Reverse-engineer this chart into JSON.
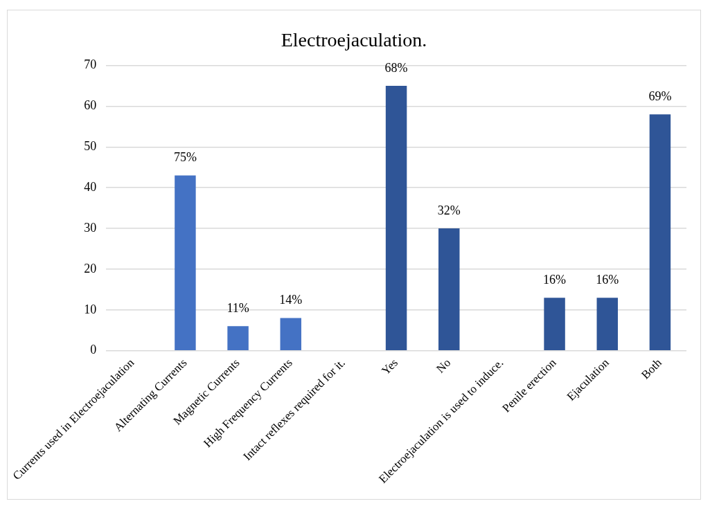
{
  "chart_data": {
    "type": "bar",
    "title": "Electroejaculation.",
    "categories": [
      "Currents used in Electroejaculation",
      "Alternating Currents",
      "Magnetic Currents",
      "High Frequency Currents",
      "Intact reflexes required for it.",
      "Yes",
      "No",
      "Electroejaculation is used to induce.",
      "Penile erection",
      "Ejaculation",
      "Both"
    ],
    "values": [
      null,
      43,
      6,
      8,
      null,
      65,
      30,
      null,
      13,
      13,
      58
    ],
    "colors": [
      "#4472c4",
      "#4472c4",
      "#4472c4",
      "#4472c4",
      "#2f5597",
      "#2f5597",
      "#2f5597",
      "#2f5597",
      "#2f5597",
      "#2f5597",
      "#2f5597"
    ],
    "annotations": [
      {
        "text": "75%",
        "x": "Alternating Currents",
        "y": 43
      },
      {
        "text": "11%",
        "x": "Magnetic Currents",
        "y": 6
      },
      {
        "text": "14%",
        "x": "High Frequency Currents",
        "y": 8
      },
      {
        "text": "68%",
        "x": "Yes",
        "y": 65
      },
      {
        "text": "32%",
        "x": "No",
        "y": 30
      },
      {
        "text": "16%",
        "x": "Penile erection",
        "y": 13
      },
      {
        "text": "16%",
        "x": "Ejaculation",
        "y": 13
      },
      {
        "text": "69%",
        "x": "Both",
        "y": 58
      }
    ],
    "ylim": [
      0,
      70
    ],
    "yticks": [
      0,
      10,
      20,
      30,
      40,
      50,
      60,
      70
    ],
    "grid": "y",
    "legend": false
  }
}
